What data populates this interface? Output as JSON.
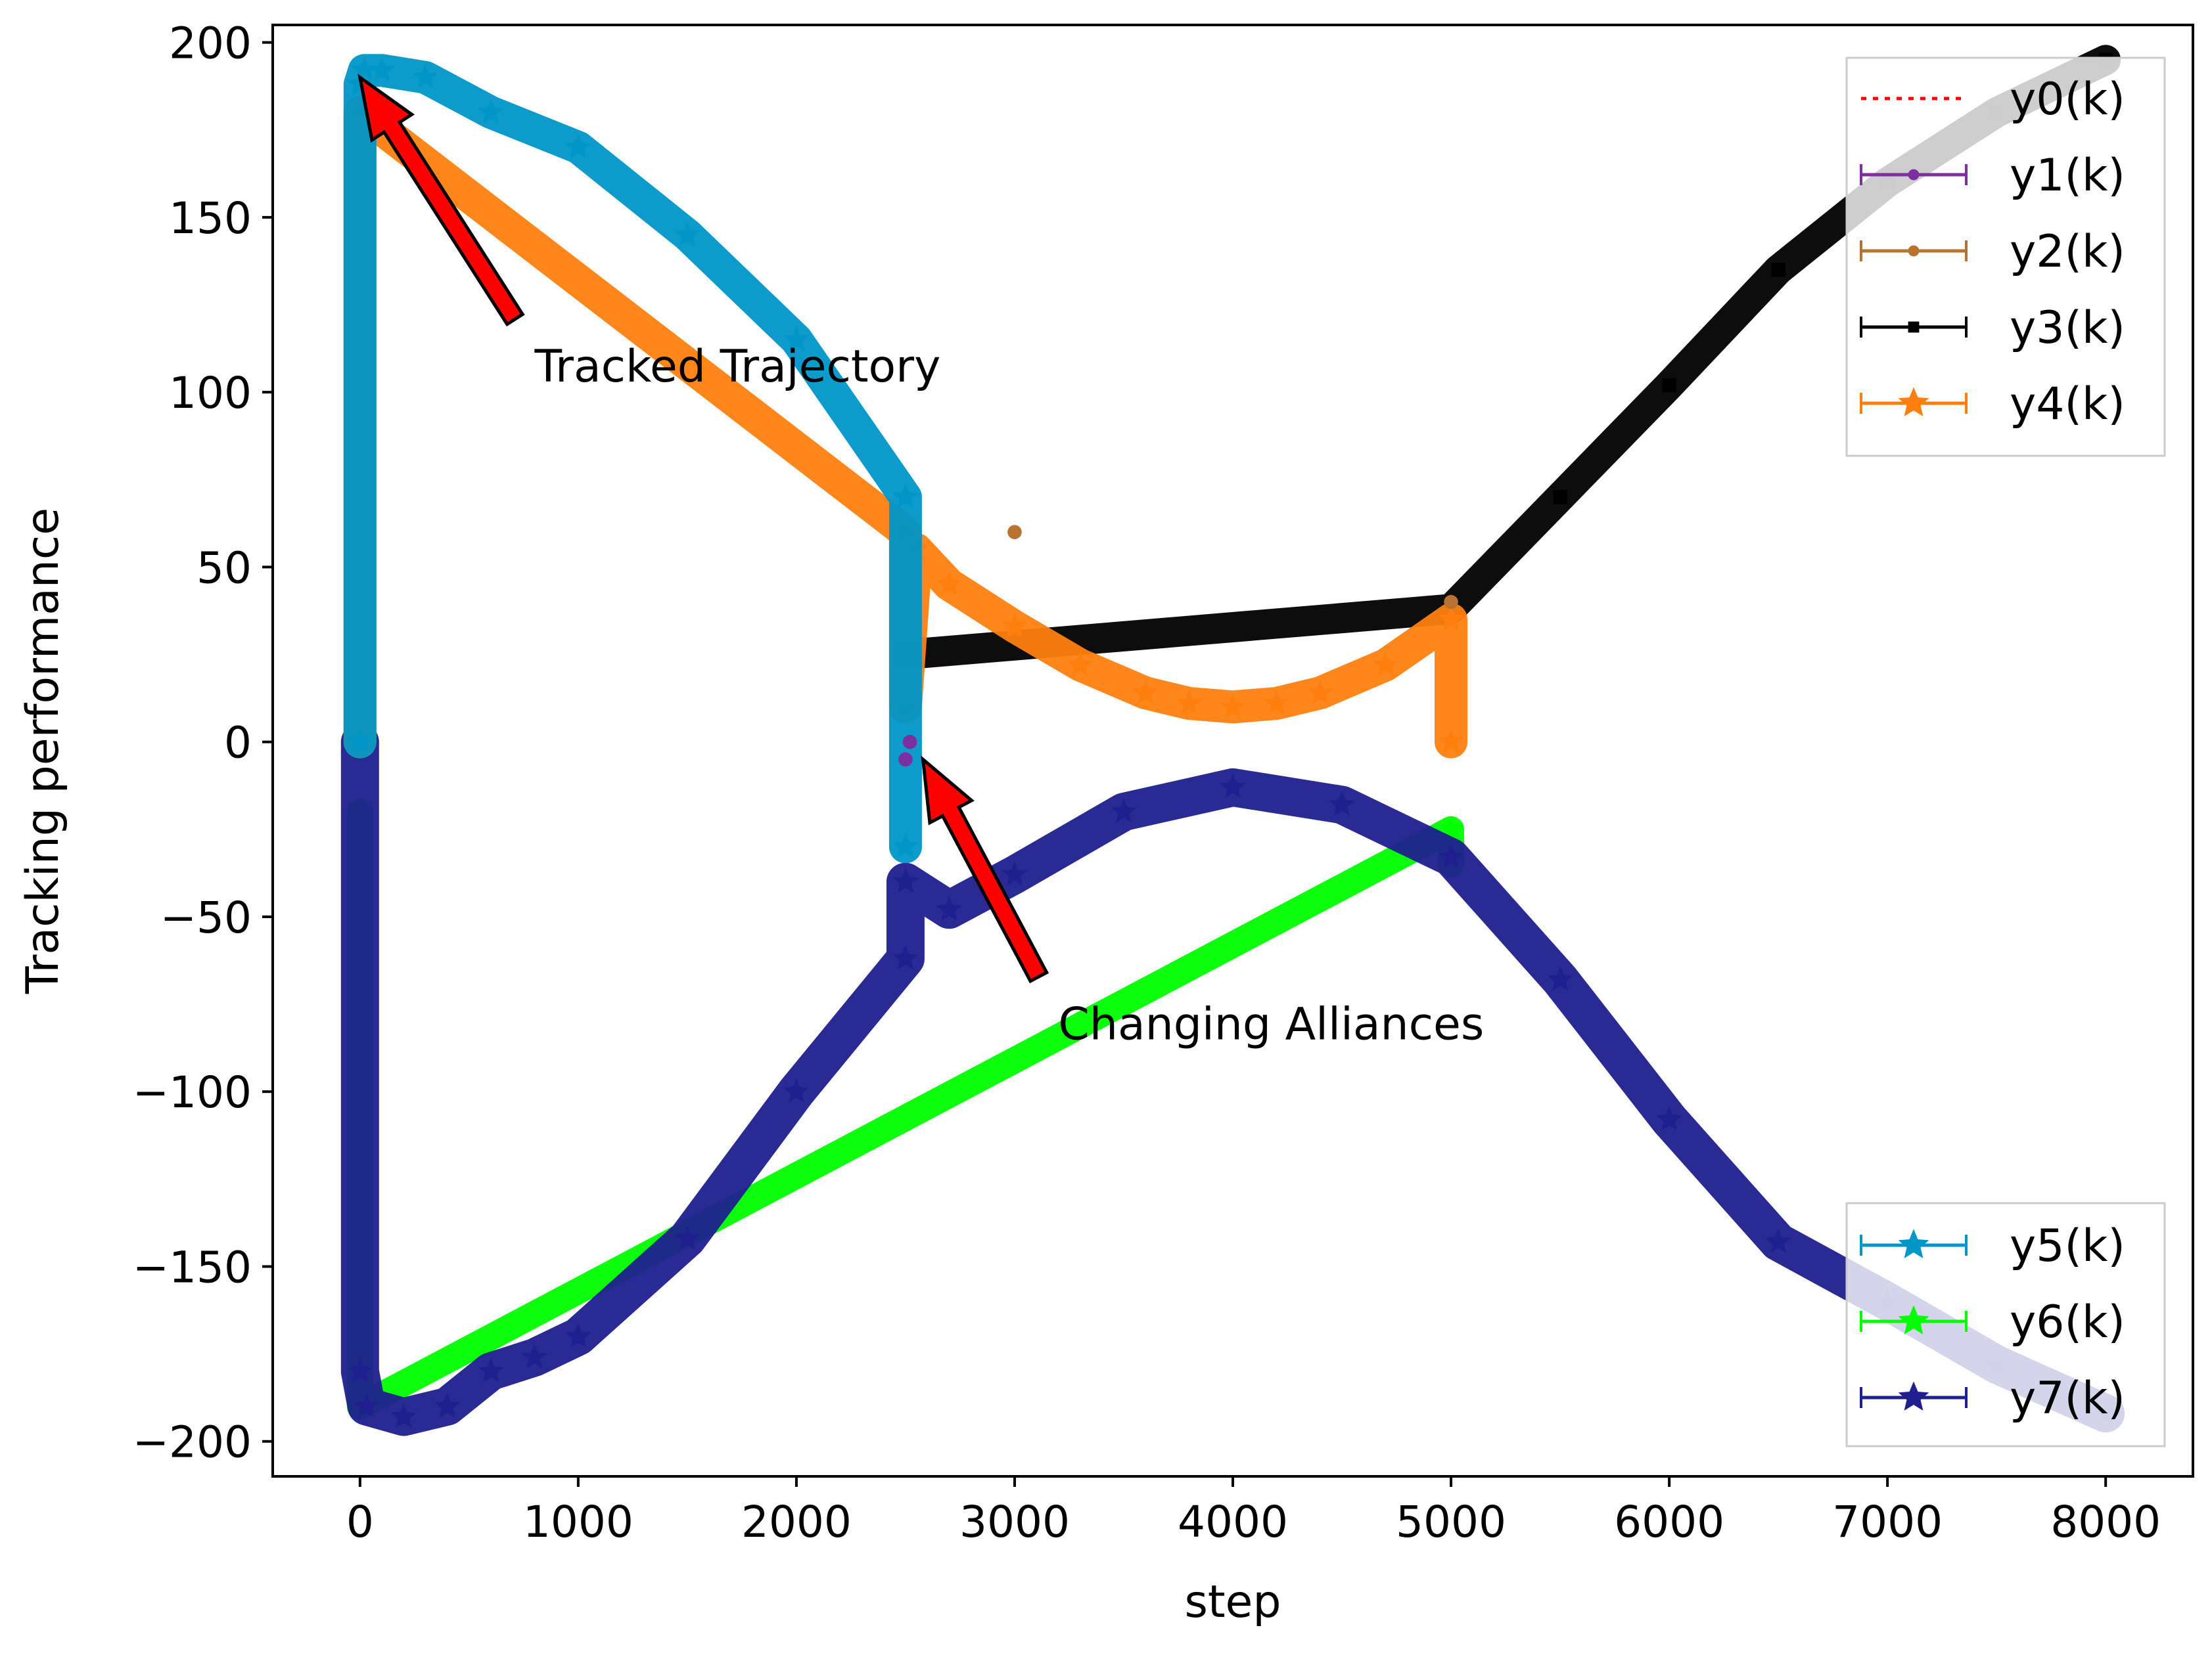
{
  "chart_data": {
    "type": "line",
    "title": "",
    "xlabel": "step",
    "ylabel": "Tracking performance",
    "xlim": [
      -400,
      8400
    ],
    "ylim": [
      -210,
      205
    ],
    "x_ticks": [
      0,
      1000,
      2000,
      3000,
      4000,
      5000,
      6000,
      7000,
      8000
    ],
    "x_tick_labels": [
      "0",
      "1000",
      "2000",
      "3000",
      "4000",
      "5000",
      "6000",
      "7000",
      "8000"
    ],
    "y_ticks": [
      200,
      150,
      100,
      50,
      0,
      -50,
      -100,
      -150,
      -200
    ],
    "y_tick_labels": [
      "200",
      "150",
      "100",
      "50",
      "0",
      "−50",
      "−100",
      "−150",
      "−200"
    ],
    "grid": false,
    "legend_upper": {
      "placement": "top-right",
      "entries": [
        "y0(k)",
        "y1(k)",
        "y2(k)",
        "y3(k)",
        "y4(k)"
      ]
    },
    "legend_lower": {
      "placement": "bottom-right",
      "entries": [
        "y5(k)",
        "y6(k)",
        "y7(k)"
      ]
    },
    "series": [
      {
        "name": "y0(k)",
        "color": "#ff0000",
        "style": "dotted",
        "visible_segment": "hidden under other series",
        "x": [],
        "y": []
      },
      {
        "name": "y1(k)",
        "color": "#7b2fa0",
        "style": "point",
        "marker": "circle",
        "x": [
          2500,
          2520
        ],
        "y": [
          -5,
          0
        ]
      },
      {
        "name": "y2(k)",
        "color": "#b87333",
        "style": "point",
        "marker": "circle",
        "x": [
          3000,
          5000
        ],
        "y": [
          60,
          40
        ]
      },
      {
        "name": "y3(k)",
        "color": "#000000",
        "style": "line",
        "marker": "square",
        "x": [
          2500,
          5000,
          5500,
          6000,
          6500,
          7000,
          7500,
          8000
        ],
        "y": [
          25,
          38,
          70,
          102,
          135,
          160,
          180,
          195
        ]
      },
      {
        "name": "y4(k)",
        "color": "#ff7f0e",
        "style": "line",
        "marker": "star",
        "x": [
          0,
          0,
          2500,
          2500,
          2550,
          2700,
          3000,
          3300,
          3600,
          3800,
          4000,
          4200,
          4400,
          4700,
          5000,
          5000
        ],
        "y": [
          0,
          180,
          60,
          10,
          55,
          45,
          33,
          22,
          14,
          11,
          10,
          11,
          14,
          22,
          35,
          0
        ]
      },
      {
        "name": "y5(k)",
        "color": "#0096c8",
        "style": "line",
        "marker": "star",
        "x": [
          0,
          0,
          20,
          100,
          300,
          600,
          1000,
          1500,
          2000,
          2500,
          2500
        ],
        "y": [
          0,
          188,
          192,
          192,
          190,
          180,
          170,
          145,
          115,
          70,
          -30
        ]
      },
      {
        "name": "y6(k)",
        "color": "#00ff00",
        "style": "line",
        "marker": "star",
        "x": [
          0,
          0,
          5000,
          5000
        ],
        "y": [
          -20,
          -190,
          -25,
          -35
        ]
      },
      {
        "name": "y7(k)",
        "color": "#1f1f8f",
        "style": "line",
        "marker": "star",
        "x": [
          0,
          0,
          30,
          200,
          400,
          600,
          800,
          1000,
          1500,
          2000,
          2500,
          2500,
          2700,
          3000,
          3500,
          4000,
          4500,
          5000,
          5500,
          6000,
          6500,
          7000,
          7500,
          8000
        ],
        "y": [
          0,
          -180,
          -190,
          -193,
          -190,
          -180,
          -176,
          -170,
          -142,
          -100,
          -62,
          -40,
          -48,
          -38,
          -20,
          -13,
          -18,
          -33,
          -68,
          -108,
          -143,
          -160,
          -178,
          -192
        ]
      }
    ],
    "annotations": [
      {
        "text": "Tracked Trajectory",
        "arrow_to": [
          0,
          190
        ],
        "text_at": [
          800,
          103
        ]
      },
      {
        "text": "Changing Alliances",
        "arrow_to": [
          2580,
          -5
        ],
        "text_at": [
          3200,
          -85
        ]
      }
    ]
  }
}
